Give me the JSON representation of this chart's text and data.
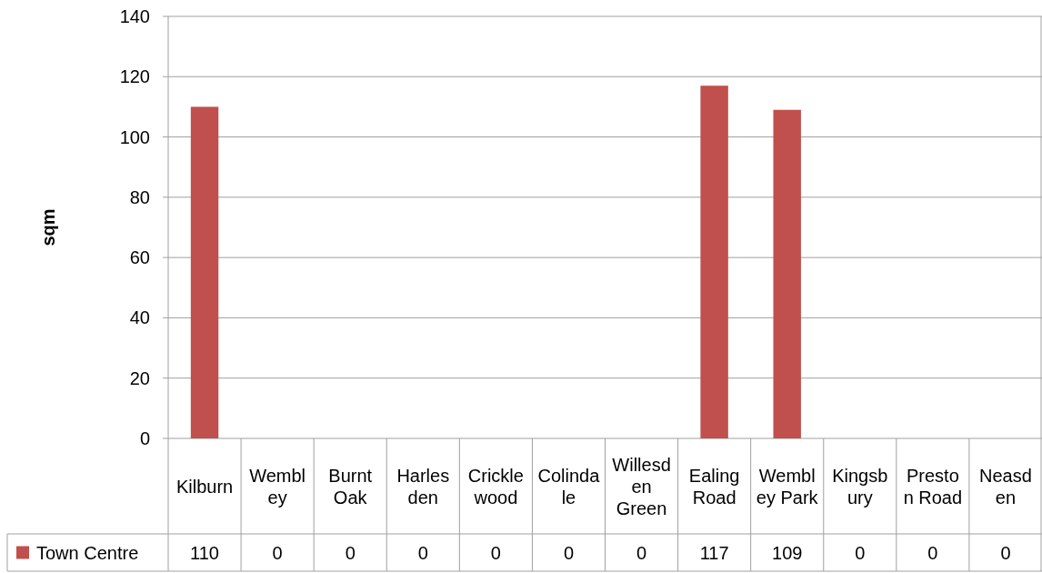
{
  "chart_data": {
    "type": "bar",
    "ylabel": "sqm",
    "categories": [
      "Kilburn",
      "Wembley",
      "Burnt Oak",
      "Harlesden",
      "Cricklewood",
      "Colindale",
      "Willesden Green",
      "Ealing Road",
      "Wembley Park",
      "Kingsbury",
      "Preston Road",
      "Neasden"
    ],
    "series": [
      {
        "name": "Town Centre",
        "color": "#c0504d",
        "values": [
          110,
          0,
          0,
          0,
          0,
          0,
          0,
          117,
          109,
          0,
          0,
          0
        ]
      }
    ],
    "ylim": [
      0,
      140
    ],
    "yticks": [
      0,
      20,
      40,
      60,
      80,
      100,
      120,
      140
    ],
    "grid": "y",
    "legend": "bottom left",
    "data_labels": true
  }
}
